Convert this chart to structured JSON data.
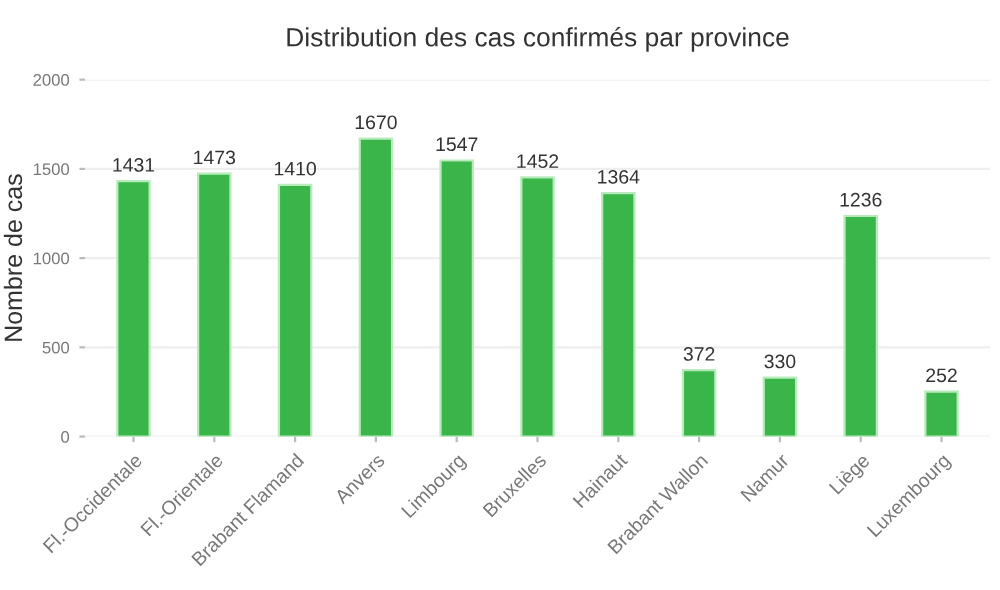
{
  "chart_data": {
    "type": "bar",
    "title": "Distribution des cas confirmés par province",
    "ylabel": "Nombre de cas",
    "categories": [
      "Fl.-Occidentale",
      "Fl.-Orientale",
      "Brabant Flamand",
      "Anvers",
      "Limbourg",
      "Bruxelles",
      "Hainaut",
      "Brabant Wallon",
      "Namur",
      "Liège",
      "Luxembourg"
    ],
    "values": [
      1431,
      1473,
      1410,
      1670,
      1547,
      1452,
      1364,
      372,
      330,
      1236,
      252
    ],
    "color": "#3ab54a",
    "ylim": [
      0,
      2000
    ],
    "yticks": [
      0,
      500,
      1000,
      1500,
      2000
    ],
    "grid": "y",
    "data_labels": true,
    "legend": false
  }
}
